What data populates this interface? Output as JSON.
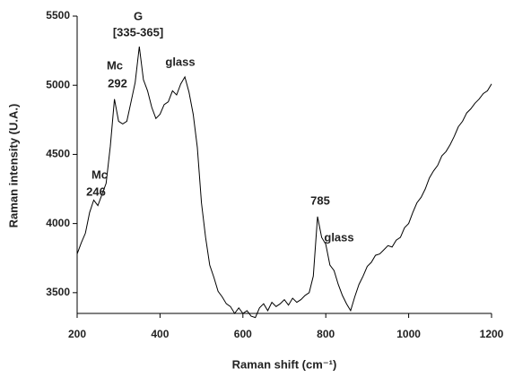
{
  "chart_data": {
    "type": "line",
    "x_label": "Raman shift (cm⁻¹)",
    "y_label": "Raman intensity (U.A.)",
    "annotations": [
      "G",
      "[335-365]",
      "Mc",
      "292",
      "glass",
      "Mc",
      "246",
      "785",
      "glass"
    ],
    "color": "#000000",
    "x": [
      200,
      210,
      220,
      230,
      240,
      250,
      260,
      270,
      280,
      290,
      300,
      310,
      320,
      330,
      340,
      350,
      360,
      370,
      380,
      390,
      400,
      410,
      420,
      430,
      440,
      450,
      460,
      470,
      480,
      490,
      500,
      510,
      520,
      530,
      540,
      550,
      560,
      570,
      580,
      590,
      600,
      610,
      620,
      630,
      640,
      650,
      660,
      670,
      680,
      690,
      700,
      710,
      720,
      730,
      740,
      750,
      760,
      770,
      780,
      790,
      800,
      810,
      820,
      830,
      840,
      850,
      860,
      870,
      880,
      890,
      900,
      910,
      920,
      930,
      940,
      950,
      960,
      970,
      980,
      990,
      1000,
      1010,
      1020,
      1030,
      1040,
      1050,
      1060,
      1070,
      1080,
      1090,
      1100,
      1110,
      1120,
      1130,
      1140,
      1150,
      1160,
      1170,
      1180,
      1190,
      1200
    ],
    "values": [
      3780,
      3860,
      3930,
      4080,
      4170,
      4130,
      4210,
      4290,
      4560,
      4900,
      4740,
      4720,
      4740,
      4880,
      5020,
      5280,
      5040,
      4960,
      4840,
      4760,
      4790,
      4860,
      4880,
      4960,
      4930,
      5010,
      5060,
      4950,
      4790,
      4550,
      4150,
      3900,
      3700,
      3610,
      3510,
      3470,
      3420,
      3400,
      3350,
      3390,
      3350,
      3370,
      3330,
      3320,
      3390,
      3420,
      3370,
      3430,
      3400,
      3420,
      3450,
      3410,
      3460,
      3430,
      3450,
      3480,
      3500,
      3620,
      4050,
      3900,
      3850,
      3700,
      3660,
      3560,
      3480,
      3420,
      3370,
      3470,
      3560,
      3620,
      3690,
      3720,
      3770,
      3780,
      3810,
      3840,
      3830,
      3880,
      3900,
      3970,
      4000,
      4080,
      4150,
      4190,
      4250,
      4330,
      4380,
      4420,
      4490,
      4520,
      4570,
      4630,
      4700,
      4740,
      4800,
      4830,
      4870,
      4900,
      4940,
      4960,
      5010
    ],
    "xlim": [
      200,
      1200
    ],
    "xticks": [
      200,
      400,
      600,
      800,
      1000,
      1200
    ],
    "ylim": [
      3350,
      5500
    ],
    "yticks": [
      3500,
      4000,
      4500,
      5000,
      5500
    ],
    "grid": false
  }
}
